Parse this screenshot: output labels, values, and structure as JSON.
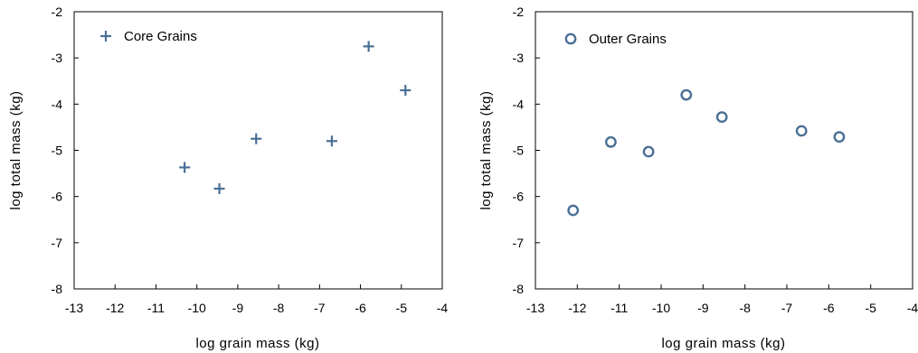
{
  "chart_data": [
    {
      "type": "scatter",
      "title": "",
      "xlabel": "log grain mass (kg)",
      "ylabel": "log total mass (kg)",
      "xlim": [
        -13,
        -4
      ],
      "ylim": [
        -8,
        -2
      ],
      "xticks": [
        -13,
        -12,
        -11,
        -10,
        -9,
        -8,
        -7,
        -6,
        -5,
        -4
      ],
      "yticks": [
        -8,
        -7,
        -6,
        -5,
        -4,
        -3,
        -2
      ],
      "grid": false,
      "legend": "top-left",
      "series": [
        {
          "name": "Core Grains",
          "marker": "plus",
          "color": "#4a6f96",
          "x": [
            -10.3,
            -9.45,
            -8.55,
            -6.7,
            -5.8,
            -4.9
          ],
          "y": [
            -5.37,
            -5.83,
            -4.75,
            -4.8,
            -2.75,
            -3.7
          ]
        }
      ]
    },
    {
      "type": "scatter",
      "title": "",
      "xlabel": "log grain mass (kg)",
      "ylabel": "log total mass (kg)",
      "xlim": [
        -13,
        -4
      ],
      "ylim": [
        -8,
        -2
      ],
      "xticks": [
        -13,
        -12,
        -11,
        -10,
        -9,
        -8,
        -7,
        -6,
        -5,
        -4
      ],
      "yticks": [
        -8,
        -7,
        -6,
        -5,
        -4,
        -3,
        -2
      ],
      "grid": false,
      "legend": "top-left",
      "series": [
        {
          "name": "Outer Grains",
          "marker": "circle-open",
          "color": "#4a6f96",
          "x": [
            -12.1,
            -11.2,
            -10.3,
            -9.4,
            -8.55,
            -6.65,
            -5.75
          ],
          "y": [
            -6.3,
            -4.82,
            -5.03,
            -3.8,
            -4.28,
            -4.58,
            -4.71
          ]
        }
      ]
    }
  ]
}
